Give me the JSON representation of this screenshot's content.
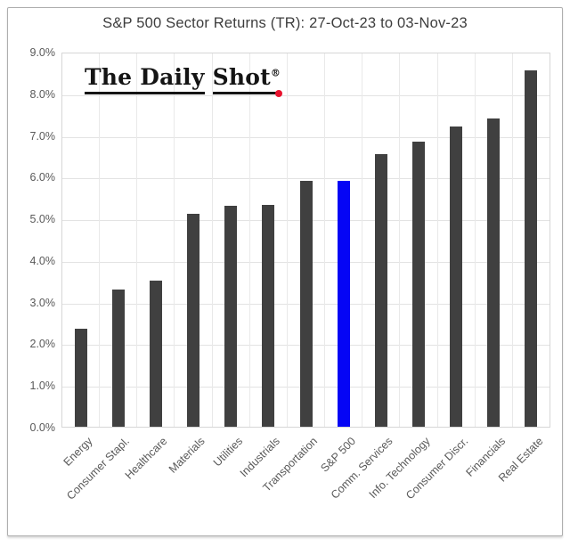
{
  "title": "S&P 500 Sector Returns (TR): 27-Oct-23 to 03-Nov-23",
  "logo": {
    "part1": "The Daily",
    "part2": "Shot",
    "reg": "®",
    "dot_color": "#e8112d"
  },
  "chart_data": {
    "type": "bar",
    "title": "S&P 500 Sector Returns (TR): 27-Oct-23 to 03-Nov-23",
    "categories": [
      "Energy",
      "Consumer Stapl.",
      "Healthcare",
      "Materials",
      "Utilities",
      "Industrials",
      "Transportation",
      "S&P 500",
      "Comm. Services",
      "Info. Technology",
      "Consumer Discr.",
      "Financials",
      "Real Estate"
    ],
    "values": [
      2.35,
      3.3,
      3.5,
      5.1,
      5.3,
      5.33,
      5.9,
      5.9,
      6.55,
      6.85,
      7.2,
      7.4,
      8.55
    ],
    "unit": "%",
    "highlight_category": "S&P 500",
    "highlight_index": 7,
    "bar_color": "#404040",
    "highlight_color": "#0505f5",
    "ylim": [
      0,
      9
    ],
    "ytick_step": 1,
    "ytick_labels": [
      "9.0%",
      "8.0%",
      "7.0%",
      "6.0%",
      "5.0%",
      "4.0%",
      "3.0%",
      "2.0%",
      "1.0%",
      "0.0%"
    ],
    "xlabel": "",
    "ylabel": "",
    "grid": "horizontal and vertical gridlines on",
    "legend": "none"
  }
}
